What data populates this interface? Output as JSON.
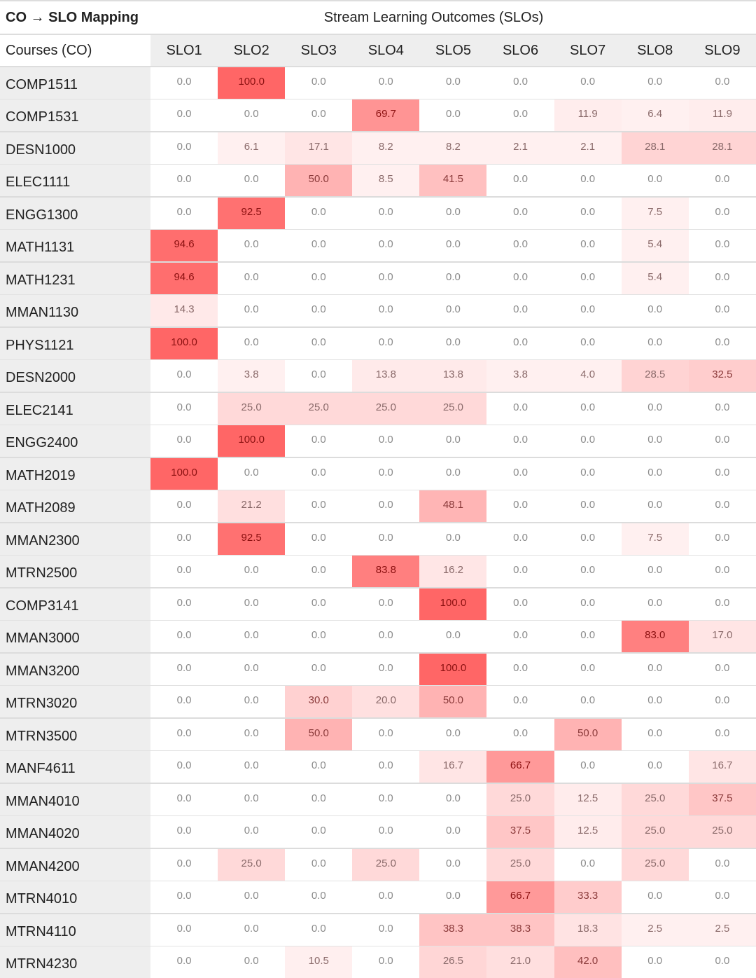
{
  "header": {
    "title": "CO → SLO Mapping",
    "group_label": "Stream Learning Outcomes (SLOs)",
    "row_header": "Courses (CO)"
  },
  "columns": [
    "SLO1",
    "SLO2",
    "SLO3",
    "SLO4",
    "SLO5",
    "SLO6",
    "SLO7",
    "SLO8",
    "SLO9"
  ],
  "colors": {
    "max_cell": "#ff6666",
    "zero_cell": "#ffffff",
    "low_text": "#8a8a8a",
    "high_text": "#8b0000",
    "course_bg": "#eeeeee"
  },
  "rows": [
    {
      "course": "COMP1511",
      "values": [
        "0.0",
        "100.0",
        "0.0",
        "0.0",
        "0.0",
        "0.0",
        "0.0",
        "0.0",
        "0.0"
      ]
    },
    {
      "course": "COMP1531",
      "values": [
        "0.0",
        "0.0",
        "0.0",
        "69.7",
        "0.0",
        "0.0",
        "11.9",
        "6.4",
        "11.9"
      ]
    },
    {
      "course": "DESN1000",
      "values": [
        "0.0",
        "6.1",
        "17.1",
        "8.2",
        "8.2",
        "2.1",
        "2.1",
        "28.1",
        "28.1"
      ]
    },
    {
      "course": "ELEC1111",
      "values": [
        "0.0",
        "0.0",
        "50.0",
        "8.5",
        "41.5",
        "0.0",
        "0.0",
        "0.0",
        "0.0"
      ]
    },
    {
      "course": "ENGG1300",
      "values": [
        "0.0",
        "92.5",
        "0.0",
        "0.0",
        "0.0",
        "0.0",
        "0.0",
        "7.5",
        "0.0"
      ]
    },
    {
      "course": "MATH1131",
      "values": [
        "94.6",
        "0.0",
        "0.0",
        "0.0",
        "0.0",
        "0.0",
        "0.0",
        "5.4",
        "0.0"
      ]
    },
    {
      "course": "MATH1231",
      "values": [
        "94.6",
        "0.0",
        "0.0",
        "0.0",
        "0.0",
        "0.0",
        "0.0",
        "5.4",
        "0.0"
      ]
    },
    {
      "course": "MMAN1130",
      "values": [
        "14.3",
        "0.0",
        "0.0",
        "0.0",
        "0.0",
        "0.0",
        "0.0",
        "0.0",
        "0.0"
      ]
    },
    {
      "course": "PHYS1121",
      "values": [
        "100.0",
        "0.0",
        "0.0",
        "0.0",
        "0.0",
        "0.0",
        "0.0",
        "0.0",
        "0.0"
      ]
    },
    {
      "course": "DESN2000",
      "values": [
        "0.0",
        "3.8",
        "0.0",
        "13.8",
        "13.8",
        "3.8",
        "4.0",
        "28.5",
        "32.5"
      ]
    },
    {
      "course": "ELEC2141",
      "values": [
        "0.0",
        "25.0",
        "25.0",
        "25.0",
        "25.0",
        "0.0",
        "0.0",
        "0.0",
        "0.0"
      ]
    },
    {
      "course": "ENGG2400",
      "values": [
        "0.0",
        "100.0",
        "0.0",
        "0.0",
        "0.0",
        "0.0",
        "0.0",
        "0.0",
        "0.0"
      ]
    },
    {
      "course": "MATH2019",
      "values": [
        "100.0",
        "0.0",
        "0.0",
        "0.0",
        "0.0",
        "0.0",
        "0.0",
        "0.0",
        "0.0"
      ]
    },
    {
      "course": "MATH2089",
      "values": [
        "0.0",
        "21.2",
        "0.0",
        "0.0",
        "48.1",
        "0.0",
        "0.0",
        "0.0",
        "0.0"
      ]
    },
    {
      "course": "MMAN2300",
      "values": [
        "0.0",
        "92.5",
        "0.0",
        "0.0",
        "0.0",
        "0.0",
        "0.0",
        "7.5",
        "0.0"
      ]
    },
    {
      "course": "MTRN2500",
      "values": [
        "0.0",
        "0.0",
        "0.0",
        "83.8",
        "16.2",
        "0.0",
        "0.0",
        "0.0",
        "0.0"
      ]
    },
    {
      "course": "COMP3141",
      "values": [
        "0.0",
        "0.0",
        "0.0",
        "0.0",
        "100.0",
        "0.0",
        "0.0",
        "0.0",
        "0.0"
      ]
    },
    {
      "course": "MMAN3000",
      "values": [
        "0.0",
        "0.0",
        "0.0",
        "0.0",
        "0.0",
        "0.0",
        "0.0",
        "83.0",
        "17.0"
      ]
    },
    {
      "course": "MMAN3200",
      "values": [
        "0.0",
        "0.0",
        "0.0",
        "0.0",
        "100.0",
        "0.0",
        "0.0",
        "0.0",
        "0.0"
      ]
    },
    {
      "course": "MTRN3020",
      "values": [
        "0.0",
        "0.0",
        "30.0",
        "20.0",
        "50.0",
        "0.0",
        "0.0",
        "0.0",
        "0.0"
      ]
    },
    {
      "course": "MTRN3500",
      "values": [
        "0.0",
        "0.0",
        "50.0",
        "0.0",
        "0.0",
        "0.0",
        "50.0",
        "0.0",
        "0.0"
      ]
    },
    {
      "course": "MANF4611",
      "values": [
        "0.0",
        "0.0",
        "0.0",
        "0.0",
        "16.7",
        "66.7",
        "0.0",
        "0.0",
        "16.7"
      ]
    },
    {
      "course": "MMAN4010",
      "values": [
        "0.0",
        "0.0",
        "0.0",
        "0.0",
        "0.0",
        "25.0",
        "12.5",
        "25.0",
        "37.5"
      ]
    },
    {
      "course": "MMAN4020",
      "values": [
        "0.0",
        "0.0",
        "0.0",
        "0.0",
        "0.0",
        "37.5",
        "12.5",
        "25.0",
        "25.0"
      ]
    },
    {
      "course": "MMAN4200",
      "values": [
        "0.0",
        "25.0",
        "0.0",
        "25.0",
        "0.0",
        "25.0",
        "0.0",
        "25.0",
        "0.0"
      ]
    },
    {
      "course": "MTRN4010",
      "values": [
        "0.0",
        "0.0",
        "0.0",
        "0.0",
        "0.0",
        "66.7",
        "33.3",
        "0.0",
        "0.0"
      ]
    },
    {
      "course": "MTRN4110",
      "values": [
        "0.0",
        "0.0",
        "0.0",
        "0.0",
        "38.3",
        "38.3",
        "18.3",
        "2.5",
        "2.5"
      ]
    },
    {
      "course": "MTRN4230",
      "values": [
        "0.0",
        "0.0",
        "10.5",
        "0.0",
        "26.5",
        "21.0",
        "42.0",
        "0.0",
        "0.0"
      ]
    }
  ]
}
